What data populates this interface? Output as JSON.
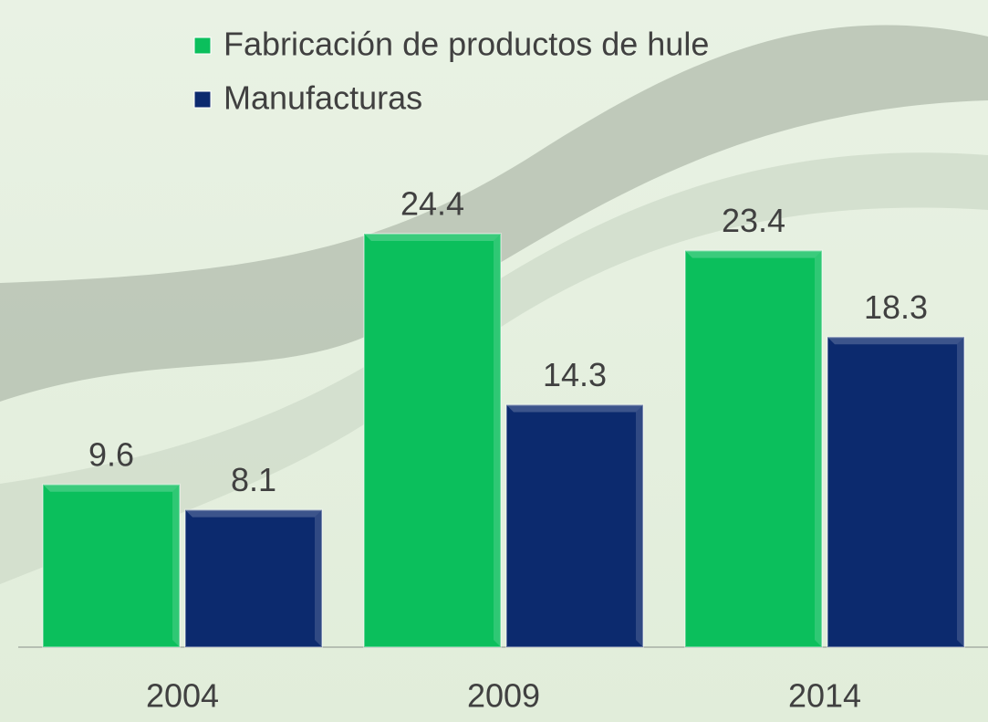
{
  "chart_data": {
    "type": "bar",
    "categories": [
      "2004",
      "2009",
      "2014"
    ],
    "series": [
      {
        "name": "Fabricación de productos de hule",
        "color": "#0bbf5c",
        "values": [
          9.6,
          24.4,
          23.4
        ]
      },
      {
        "name": "Manufacturas",
        "color": "#0c2a6e",
        "values": [
          8.1,
          14.3,
          18.3
        ]
      }
    ]
  }
}
